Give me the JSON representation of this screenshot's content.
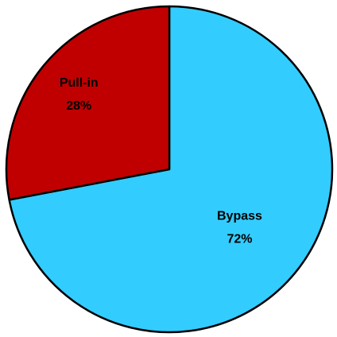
{
  "chart_data": {
    "type": "pie",
    "categories": [
      "Bypass",
      "Pull-in"
    ],
    "values": [
      72,
      28
    ],
    "value_labels": [
      "72%",
      "28%"
    ],
    "colors": [
      "#33ccff",
      "#c00000"
    ]
  }
}
